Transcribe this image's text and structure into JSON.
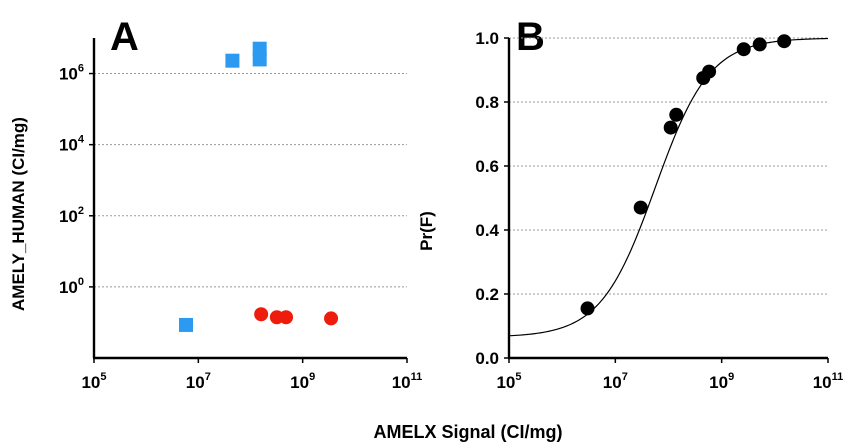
{
  "figure": {
    "xlabel_shared": "AMELX Signal (CI/mg)"
  },
  "chart_data": [
    {
      "type": "scatter",
      "panel_label": "A",
      "ylabel": "AMELY_HUMAN (CI/mg)",
      "xscale": "log",
      "yscale": "log",
      "xlim": [
        100000,
        100000000000
      ],
      "ylim": [
        0.01,
        10000000
      ],
      "x_ticks": [
        {
          "base": "10",
          "exp": "5",
          "value": 100000
        },
        {
          "base": "10",
          "exp": "7",
          "value": 10000000
        },
        {
          "base": "10",
          "exp": "9",
          "value": 1000000000
        },
        {
          "base": "10",
          "exp": "11",
          "value": 100000000000
        }
      ],
      "y_ticks": [
        {
          "base": "10",
          "exp": "0",
          "value": 1
        },
        {
          "base": "10",
          "exp": "2",
          "value": 100
        },
        {
          "base": "10",
          "exp": "4",
          "value": 10000
        },
        {
          "base": "10",
          "exp": "6",
          "value": 1000000
        }
      ],
      "grid": "horizontal dotted at y ticks",
      "series": [
        {
          "marker": "square",
          "color": "#2b9af0",
          "points": [
            {
              "x": 5800000,
              "y": 0.085
            },
            {
              "x": 45000000,
              "y": 2300000
            },
            {
              "x": 150000000,
              "y": 2500000
            },
            {
              "x": 150000000,
              "y": 5000000
            }
          ]
        },
        {
          "marker": "circle",
          "color": "#ee1c0c",
          "points": [
            {
              "x": 160000000,
              "y": 0.17
            },
            {
              "x": 320000000,
              "y": 0.14
            },
            {
              "x": 480000000,
              "y": 0.14
            },
            {
              "x": 3500000000,
              "y": 0.13
            }
          ]
        }
      ]
    },
    {
      "type": "scatter",
      "panel_label": "B",
      "ylabel": "Pr(F)",
      "xscale": "log",
      "xlim": [
        100000,
        100000000000
      ],
      "ylim": [
        0,
        1
      ],
      "x_ticks": [
        {
          "base": "10",
          "exp": "5",
          "value": 100000
        },
        {
          "base": "10",
          "exp": "7",
          "value": 10000000
        },
        {
          "base": "10",
          "exp": "9",
          "value": 1000000000
        },
        {
          "base": "10",
          "exp": "11",
          "value": 100000000000
        }
      ],
      "y_ticks": [
        {
          "label": "0.0",
          "value": 0
        },
        {
          "label": "0.2",
          "value": 0.2
        },
        {
          "label": "0.4",
          "value": 0.4
        },
        {
          "label": "0.6",
          "value": 0.6
        },
        {
          "label": "0.8",
          "value": 0.8
        },
        {
          "label": "1.0",
          "value": 1
        }
      ],
      "grid": "horizontal dotted at y ticks",
      "series": [
        {
          "marker": "circle",
          "color": "#000000",
          "points": [
            {
              "x": 3000000,
              "y": 0.155
            },
            {
              "x": 30000000,
              "y": 0.47
            },
            {
              "x": 110000000,
              "y": 0.72
            },
            {
              "x": 140000000,
              "y": 0.76
            },
            {
              "x": 450000000,
              "y": 0.875
            },
            {
              "x": 580000000,
              "y": 0.895
            },
            {
              "x": 2600000000,
              "y": 0.965
            },
            {
              "x": 5200000000,
              "y": 0.98
            },
            {
              "x": 15000000000,
              "y": 0.99
            }
          ]
        }
      ],
      "fit_curve": {
        "type": "logistic",
        "lower": 0.065,
        "upper": 1.0,
        "log10_midpoint": 7.75,
        "slope": 1.95
      }
    }
  ]
}
